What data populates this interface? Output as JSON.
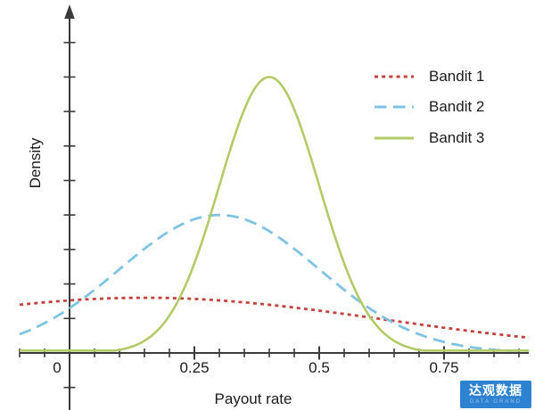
{
  "chart_data": {
    "type": "line",
    "title": "",
    "xlabel": "Payout rate",
    "ylabel": "Density",
    "x_tick_labels": [
      "0",
      "0.25",
      "0.5",
      "0.75"
    ],
    "x_tick_values": [
      0,
      0.25,
      0.5,
      0.75
    ],
    "x_minor_tick_step": 0.05,
    "xlim": [
      -0.1,
      0.92
    ],
    "ylim": [
      0,
      10
    ],
    "grid": false,
    "legend_position": "upper right",
    "axis_color": "#3a3a3a",
    "series": [
      {
        "name": "Bandit 1",
        "color": "#c2423d",
        "line_style": "dotted",
        "distribution": {
          "shape": "gaussian",
          "mean": 0.15,
          "std": 0.48,
          "peak_density": 1.6
        },
        "points": [
          [
            -0.1,
            1.4
          ],
          [
            0,
            1.52
          ],
          [
            0.1,
            1.59
          ],
          [
            0.15,
            1.6
          ],
          [
            0.25,
            1.57
          ],
          [
            0.35,
            1.47
          ],
          [
            0.45,
            1.32
          ],
          [
            0.55,
            1.13
          ],
          [
            0.65,
            0.93
          ],
          [
            0.75,
            0.73
          ],
          [
            0.85,
            0.55
          ],
          [
            0.92,
            0.44
          ]
        ]
      },
      {
        "name": "Bandit 2",
        "color": "#7ec3e2",
        "line_style": "dashed",
        "distribution": {
          "shape": "gaussian",
          "mean": 0.3,
          "std": 0.2,
          "peak_density": 4.0
        },
        "points": [
          [
            -0.1,
            0.54
          ],
          [
            0,
            1.3
          ],
          [
            0.1,
            2.43
          ],
          [
            0.2,
            3.53
          ],
          [
            0.3,
            4.0
          ],
          [
            0.4,
            3.53
          ],
          [
            0.5,
            2.43
          ],
          [
            0.6,
            1.3
          ],
          [
            0.7,
            0.54
          ],
          [
            0.8,
            0.18
          ],
          [
            0.9,
            0.04
          ],
          [
            0.92,
            0.03
          ]
        ]
      },
      {
        "name": "Bandit 3",
        "color": "#b2cb68",
        "line_style": "solid",
        "distribution": {
          "shape": "gaussian",
          "mean": 0.4,
          "std": 0.1,
          "peak_density": 8.0
        },
        "points": [
          [
            0.1,
            0.09
          ],
          [
            0.15,
            0.35
          ],
          [
            0.2,
            1.08
          ],
          [
            0.25,
            2.6
          ],
          [
            0.3,
            4.85
          ],
          [
            0.35,
            7.06
          ],
          [
            0.4,
            8.0
          ],
          [
            0.45,
            7.06
          ],
          [
            0.5,
            4.85
          ],
          [
            0.55,
            2.6
          ],
          [
            0.6,
            1.08
          ],
          [
            0.65,
            0.35
          ],
          [
            0.7,
            0.09
          ],
          [
            0.8,
            0.0
          ],
          [
            0.92,
            0.0
          ]
        ]
      }
    ]
  },
  "watermark": {
    "cn": "达观数据",
    "en": "DATA GRAND",
    "bg_color": "#2e82d2"
  }
}
